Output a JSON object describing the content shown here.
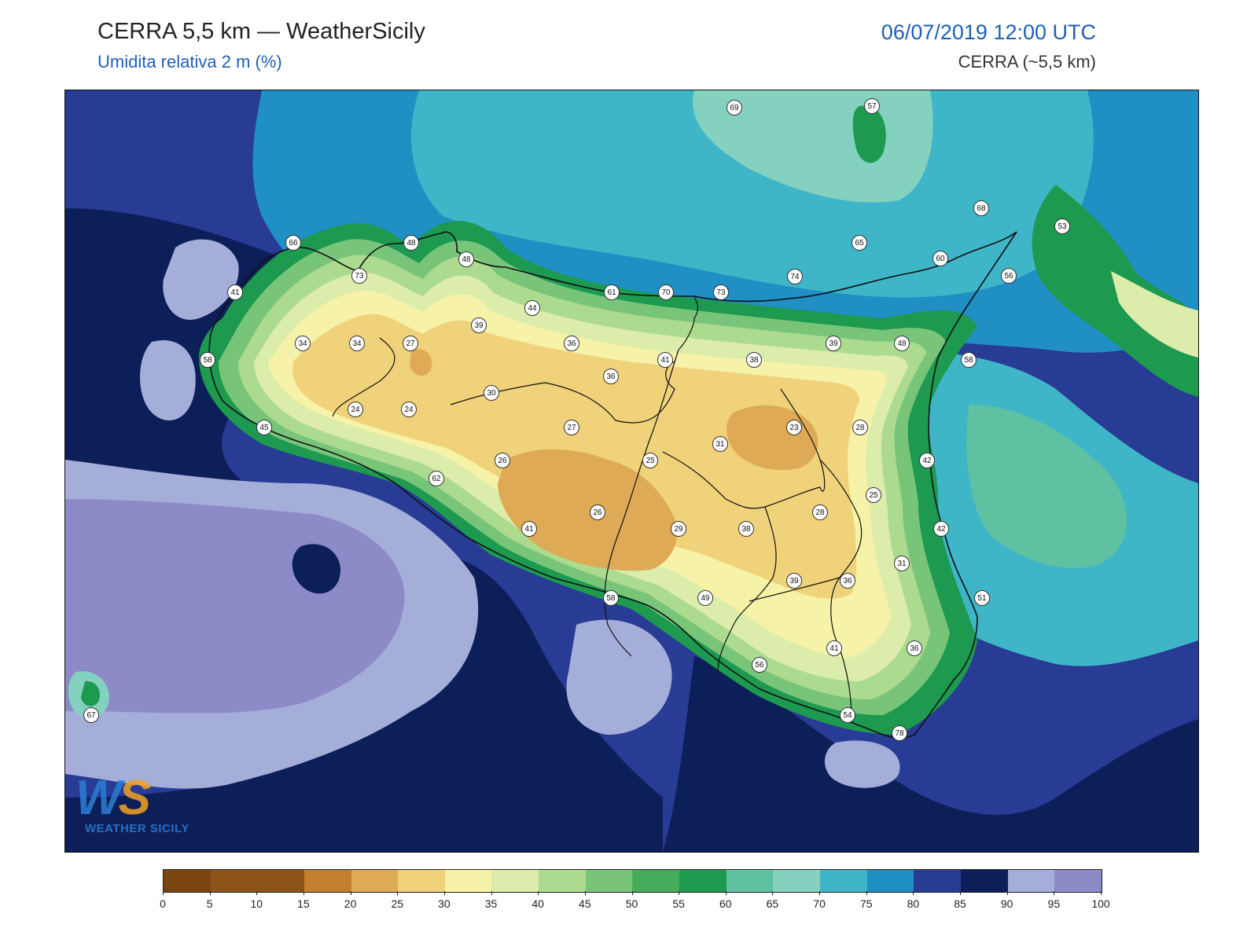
{
  "header": {
    "title": "CERRA 5,5 km — WeatherSicily",
    "subtitle": "Umidita relativa 2 m (%)",
    "datetime": "06/07/2019 12:00 UTC",
    "model": "CERRA (~5,5 km)"
  },
  "logo": {
    "letters_w": "W",
    "letters_s": "S",
    "name": "WEATHER SICILY"
  },
  "colorbar": {
    "ticks": [
      "0",
      "5",
      "10",
      "15",
      "20",
      "25",
      "30",
      "35",
      "40",
      "45",
      "50",
      "55",
      "60",
      "65",
      "70",
      "75",
      "80",
      "85",
      "90",
      "95",
      "100"
    ],
    "colors": [
      "#7a4510",
      "#8d5216",
      "#8d5216",
      "#c27f2f",
      "#deaa55",
      "#efd27a",
      "#f6f2a8",
      "#dcecab",
      "#acdb8f",
      "#78c57a",
      "#44ac5b",
      "#1d9950",
      "#5ec2a2",
      "#84d1bf",
      "#3fb5c8",
      "#1f8fc4",
      "#283b95",
      "#0d1f58",
      "#a5add9",
      "#8d8ac8"
    ]
  },
  "stations": [
    {
      "v": "69"
    },
    {
      "v": "57"
    },
    {
      "v": "68"
    },
    {
      "v": "53"
    },
    {
      "v": "66"
    },
    {
      "v": "48"
    },
    {
      "v": "48"
    },
    {
      "v": "65"
    },
    {
      "v": "60"
    },
    {
      "v": "56"
    },
    {
      "v": "73"
    },
    {
      "v": "74"
    },
    {
      "v": "41"
    },
    {
      "v": "61"
    },
    {
      "v": "70"
    },
    {
      "v": "73"
    },
    {
      "v": "44"
    },
    {
      "v": "39"
    },
    {
      "v": "34"
    },
    {
      "v": "34"
    },
    {
      "v": "27"
    },
    {
      "v": "36"
    },
    {
      "v": "39"
    },
    {
      "v": "48"
    },
    {
      "v": "58"
    },
    {
      "v": "41"
    },
    {
      "v": "38"
    },
    {
      "v": "58"
    },
    {
      "v": "36"
    },
    {
      "v": "30"
    },
    {
      "v": "24"
    },
    {
      "v": "24"
    },
    {
      "v": "45"
    },
    {
      "v": "27"
    },
    {
      "v": "23"
    },
    {
      "v": "28"
    },
    {
      "v": "31"
    },
    {
      "v": "26"
    },
    {
      "v": "25"
    },
    {
      "v": "42"
    },
    {
      "v": "62"
    },
    {
      "v": "25"
    },
    {
      "v": "26"
    },
    {
      "v": "28"
    },
    {
      "v": "41"
    },
    {
      "v": "29"
    },
    {
      "v": "38"
    },
    {
      "v": "42"
    },
    {
      "v": "31"
    },
    {
      "v": "39"
    },
    {
      "v": "36"
    },
    {
      "v": "58"
    },
    {
      "v": "49"
    },
    {
      "v": "51"
    },
    {
      "v": "41"
    },
    {
      "v": "36"
    },
    {
      "v": "56"
    },
    {
      "v": "67"
    },
    {
      "v": "54"
    },
    {
      "v": "78"
    }
  ]
}
